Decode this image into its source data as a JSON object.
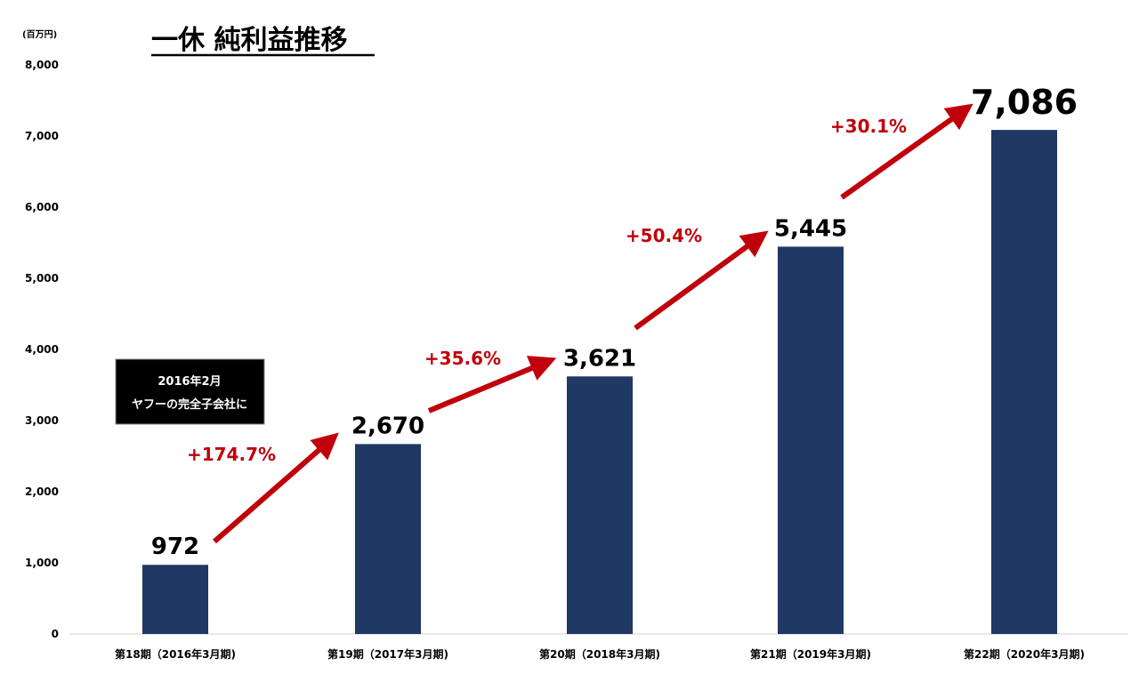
{
  "chart_data": {
    "type": "bar",
    "title": "一休 純利益推移",
    "unit_label": "(百万円)",
    "ylim": [
      0,
      8000
    ],
    "yticks": [
      "0",
      "1,000",
      "2,000",
      "3,000",
      "4,000",
      "5,000",
      "6,000",
      "7,000",
      "8,000"
    ],
    "ytick_values": [
      0,
      1000,
      2000,
      3000,
      4000,
      5000,
      6000,
      7000,
      8000
    ],
    "categories": [
      "第18期（2016年3月期)",
      "第19期（2017年3月期)",
      "第20期（2018年3月期)",
      "第21期（2019年3月期)",
      "第22期（2020年3月期)"
    ],
    "values": [
      972,
      2670,
      3621,
      5445,
      7086
    ],
    "value_labels": [
      "972",
      "2,670",
      "3,621",
      "5,445",
      "7,086"
    ],
    "growth_labels": [
      "+174.7%",
      "+35.6%",
      "+50.4%",
      "+30.1%"
    ],
    "annotation": {
      "line1": "2016年2月",
      "line2": "ヤフーの完全子会社に"
    },
    "grid": false,
    "legend": "none"
  },
  "colors": {
    "bar": "#1f3864",
    "arrow": "#c0000b",
    "note_bg": "#000000"
  }
}
